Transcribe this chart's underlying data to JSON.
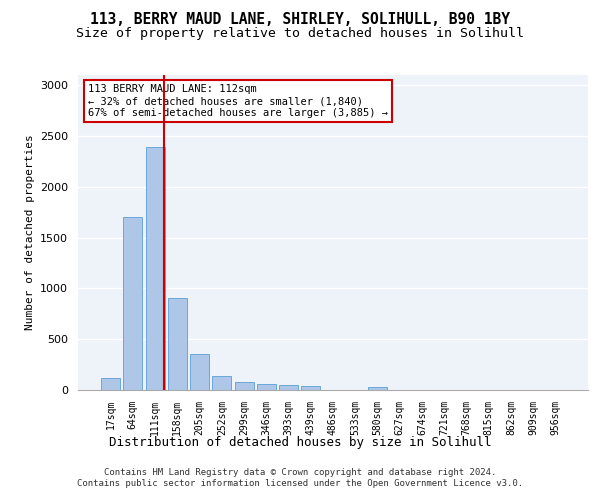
{
  "title_line1": "113, BERRY MAUD LANE, SHIRLEY, SOLIHULL, B90 1BY",
  "title_line2": "Size of property relative to detached houses in Solihull",
  "xlabel": "Distribution of detached houses by size in Solihull",
  "ylabel": "Number of detached properties",
  "footer_line1": "Contains HM Land Registry data © Crown copyright and database right 2024.",
  "footer_line2": "Contains public sector information licensed under the Open Government Licence v3.0.",
  "bar_labels": [
    "17sqm",
    "64sqm",
    "111sqm",
    "158sqm",
    "205sqm",
    "252sqm",
    "299sqm",
    "346sqm",
    "393sqm",
    "439sqm",
    "486sqm",
    "533sqm",
    "580sqm",
    "627sqm",
    "674sqm",
    "721sqm",
    "768sqm",
    "815sqm",
    "862sqm",
    "909sqm",
    "956sqm"
  ],
  "bar_values": [
    120,
    1700,
    2390,
    910,
    350,
    140,
    80,
    55,
    45,
    35,
    0,
    0,
    30,
    0,
    0,
    0,
    0,
    0,
    0,
    0,
    0
  ],
  "bar_color": "#aec6e8",
  "bar_edge_color": "#5a9fd4",
  "property_label": "113 BERRY MAUD LANE: 112sqm",
  "pct_smaller": "32% of detached houses are smaller (1,840)",
  "pct_larger": "67% of semi-detached houses are larger (3,885)",
  "vline_x_index": 2,
  "annotation_box_color": "#ffffff",
  "annotation_box_edge": "#cc0000",
  "vline_color": "#cc0000",
  "ylim": [
    0,
    3100
  ],
  "yticks": [
    0,
    500,
    1000,
    1500,
    2000,
    2500,
    3000
  ],
  "background_color": "#eef2f9",
  "grid_color": "#ffffff",
  "title_fontsize": 10.5,
  "subtitle_fontsize": 9.5
}
